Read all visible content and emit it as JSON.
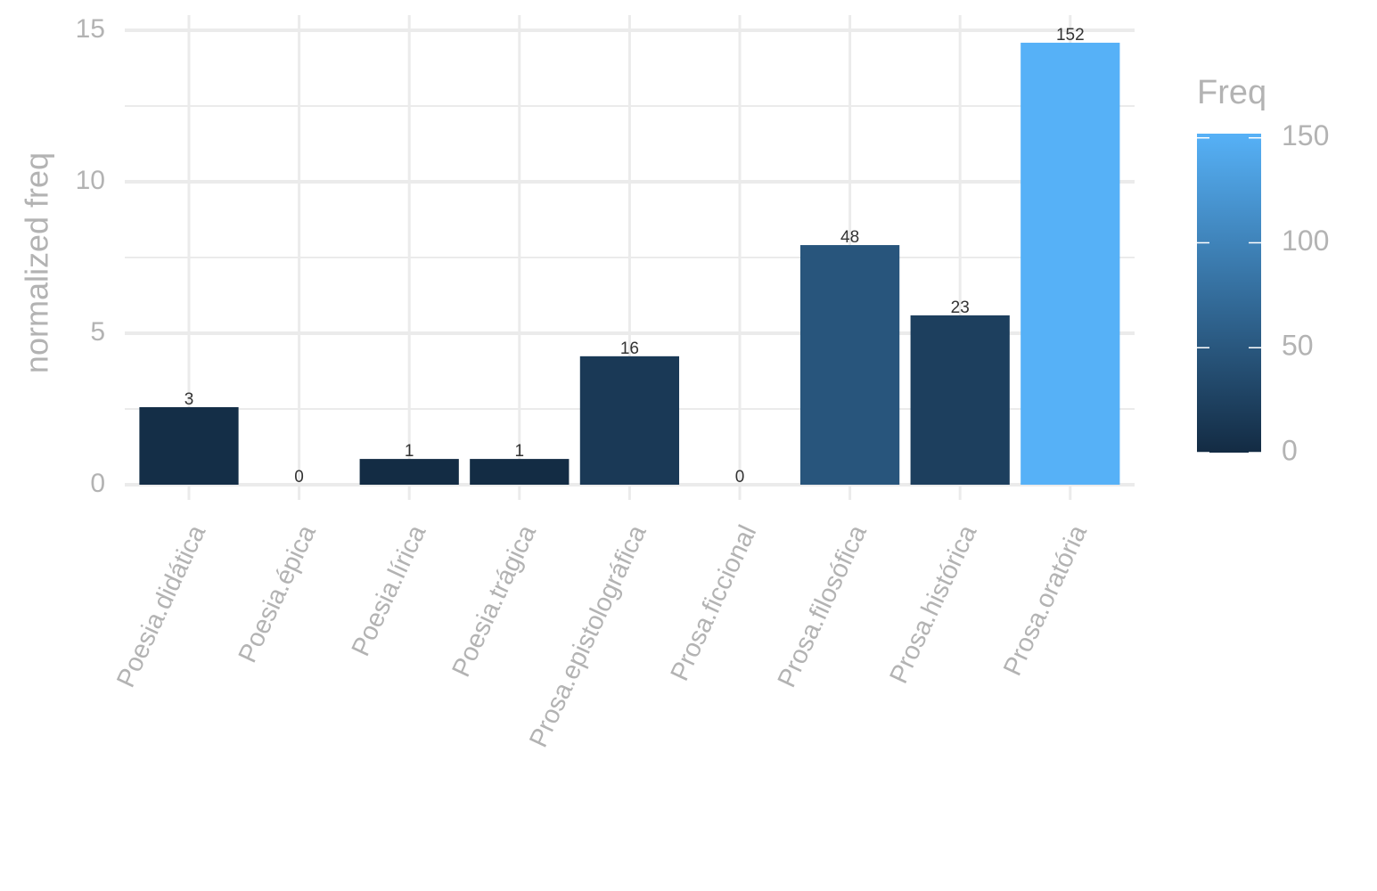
{
  "chart_data": {
    "type": "bar",
    "y_label": "normalized freq",
    "categories": [
      "Poesia.didática",
      "Poesia.épica",
      "Poesia.lírica",
      "Poesia.trágica",
      "Prosa.epistolográfica",
      "Prosa.ficcional",
      "Prosa.filosófica",
      "Prosa.histórica",
      "Prosa.oratória"
    ],
    "values": [
      2.56,
      0,
      0.85,
      0.85,
      4.24,
      0,
      7.91,
      5.59,
      14.59
    ],
    "freq": [
      3,
      0,
      1,
      1,
      16,
      0,
      48,
      23,
      152
    ],
    "ylim": [
      -0.5,
      15.5
    ],
    "yticks": [
      0,
      5,
      10,
      15
    ],
    "yminor": [
      2.5,
      7.5,
      12.5
    ],
    "grid": true,
    "colorbar": {
      "title": "Freq",
      "lim": [
        0,
        152
      ],
      "ticks": [
        0,
        50,
        100,
        150
      ],
      "low": "#132B43",
      "high": "#56B1F7"
    }
  }
}
